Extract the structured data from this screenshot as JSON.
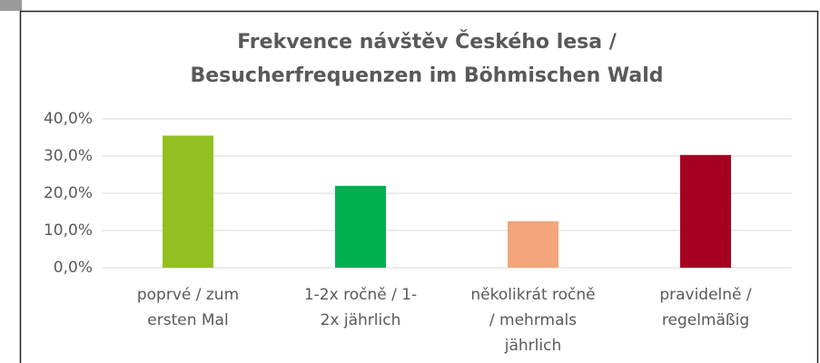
{
  "chart_data": {
    "type": "bar",
    "title": [
      "Frekvence návštěv Českého lesa /",
      "Besucherfrequenzen im Böhmischen Wald"
    ],
    "categories": [
      [
        "poprvé / zum",
        "ersten Mal"
      ],
      [
        "1-2x ročně / 1-",
        "2x jährlich"
      ],
      [
        "několikrát ročně",
        "/ mehrmals",
        "jährlich"
      ],
      [
        "pravidelně /",
        "regelmäßig"
      ]
    ],
    "values": [
      35.5,
      22,
      12.5,
      30.3
    ],
    "colors": [
      "#92c020",
      "#00b050",
      "#f2a679",
      "#a50021"
    ],
    "ylim": [
      0,
      40
    ],
    "yticks": [
      {
        "value": 0,
        "label": "0,0%"
      },
      {
        "value": 10,
        "label": "10,0%"
      },
      {
        "value": 20,
        "label": "20,0%"
      },
      {
        "value": 30,
        "label": "30,0%"
      },
      {
        "value": 40,
        "label": "40,0%"
      }
    ],
    "grid": true
  }
}
